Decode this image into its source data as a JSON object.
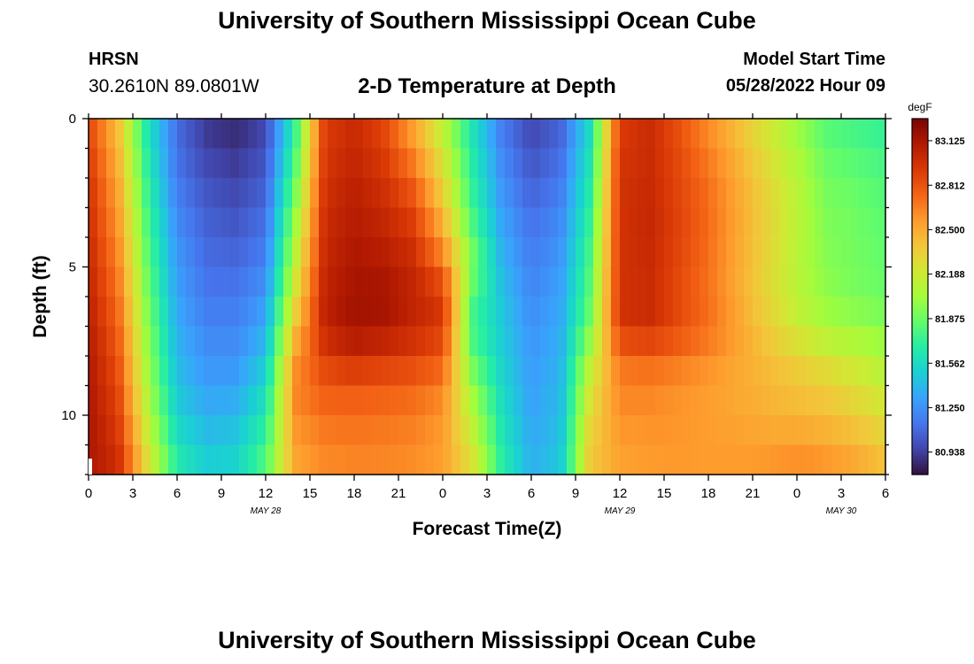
{
  "header": {
    "title": "University of Southern Mississippi Ocean Cube",
    "station": "HRSN",
    "coords": "30.2610N  89.0801W",
    "subtitle": "2-D Temperature at Depth",
    "model_label": "Model Start Time",
    "model_time": "05/28/2022 Hour 09"
  },
  "footer": {
    "title": "University of Southern Mississippi Ocean Cube"
  },
  "chart_data": {
    "type": "heatmap",
    "title": "2-D Temperature at Depth",
    "xlabel": "Forecast Time(Z)",
    "ylabel": "Depth (ft)",
    "x_ticks": [
      "0",
      "3",
      "6",
      "9",
      "12",
      "15",
      "18",
      "21",
      "0",
      "3",
      "6",
      "9",
      "12",
      "15",
      "18",
      "21",
      "0",
      "3",
      "6"
    ],
    "date_labels": [
      {
        "label": "MAY 28",
        "tick_index": 12
      },
      {
        "label": "MAY 29",
        "tick_index": 36
      },
      {
        "label": "MAY 30",
        "tick_index": 51
      }
    ],
    "y_ticks": [
      "0",
      "5",
      "10"
    ],
    "ylim": [
      0,
      12
    ],
    "x_range_hours": [
      0,
      54
    ],
    "colorbar": {
      "units": "degF",
      "labels": [
        "83.125",
        "82.812",
        "82.500",
        "82.188",
        "81.875",
        "81.562",
        "81.250",
        "80.938"
      ],
      "min": 80.78,
      "max": 83.28,
      "colors": [
        "#30123b",
        "#4145ab",
        "#4675ed",
        "#39a2fc",
        "#1bcfd4",
        "#24eca6",
        "#61fc6c",
        "#a4fc3b",
        "#d1e834",
        "#f3c63a",
        "#fe9b2d",
        "#f36315",
        "#d93806",
        "#b11901",
        "#7a0402"
      ]
    },
    "depth_rows": [
      "0",
      "1",
      "2",
      "3",
      "4",
      "5",
      "6",
      "7",
      "8",
      "9",
      "10",
      "11",
      "12"
    ],
    "hours": [
      0,
      2,
      4,
      6,
      8,
      10,
      12,
      14,
      16,
      18,
      20,
      22,
      24,
      26,
      28,
      30,
      32,
      34,
      36,
      38,
      40,
      42,
      44,
      46,
      48,
      50,
      52,
      54
    ],
    "temperature_degF": [
      [
        82.85,
        82.4,
        81.6,
        81.1,
        80.9,
        80.85,
        80.95,
        81.7,
        82.9,
        83.0,
        82.85,
        82.5,
        82.1,
        81.6,
        81.15,
        80.95,
        81.05,
        81.55,
        82.9,
        83.0,
        82.8,
        82.6,
        82.4,
        82.2,
        82.0,
        81.8,
        81.75,
        81.7
      ],
      [
        82.9,
        82.45,
        81.65,
        81.12,
        80.95,
        80.9,
        81.0,
        81.75,
        82.92,
        83.02,
        82.9,
        82.6,
        82.2,
        81.65,
        81.2,
        81.0,
        81.1,
        81.6,
        82.92,
        83.0,
        82.85,
        82.65,
        82.45,
        82.25,
        82.05,
        81.85,
        81.8,
        81.75
      ],
      [
        82.95,
        82.5,
        81.7,
        81.15,
        81.0,
        80.95,
        81.05,
        81.85,
        82.95,
        83.05,
        82.95,
        82.75,
        82.3,
        81.7,
        81.25,
        81.05,
        81.15,
        81.65,
        82.95,
        83.0,
        82.85,
        82.7,
        82.5,
        82.3,
        82.1,
        81.9,
        81.85,
        81.8
      ],
      [
        82.98,
        82.55,
        81.75,
        81.2,
        81.05,
        81.0,
        81.1,
        81.95,
        82.98,
        83.08,
        83.0,
        82.85,
        82.4,
        81.75,
        81.3,
        81.1,
        81.2,
        81.7,
        82.95,
        83.02,
        82.88,
        82.72,
        82.52,
        82.32,
        82.12,
        81.92,
        81.88,
        81.82
      ],
      [
        83.0,
        82.6,
        81.8,
        81.25,
        81.08,
        81.05,
        81.15,
        82.05,
        83.0,
        83.1,
        83.05,
        82.95,
        82.55,
        81.85,
        81.35,
        81.15,
        81.25,
        81.75,
        82.95,
        83.02,
        82.88,
        82.72,
        82.52,
        82.32,
        82.12,
        81.94,
        81.9,
        81.84
      ],
      [
        83.02,
        82.65,
        81.85,
        81.28,
        81.12,
        81.1,
        81.2,
        82.15,
        83.02,
        83.12,
        83.1,
        83.0,
        82.7,
        81.95,
        81.4,
        81.18,
        81.28,
        81.8,
        82.95,
        83.0,
        82.85,
        82.7,
        82.5,
        82.3,
        82.1,
        81.95,
        81.9,
        81.85
      ],
      [
        83.05,
        82.7,
        81.9,
        81.32,
        81.15,
        81.15,
        81.28,
        82.25,
        83.05,
        83.15,
        83.15,
        83.05,
        82.95,
        81.8,
        81.45,
        81.22,
        81.32,
        81.85,
        82.95,
        83.0,
        82.85,
        82.7,
        82.5,
        82.3,
        82.12,
        81.98,
        81.92,
        81.88
      ],
      [
        83.08,
        82.75,
        81.95,
        81.36,
        81.2,
        81.2,
        81.35,
        82.4,
        83.05,
        83.15,
        83.12,
        83.02,
        82.9,
        81.75,
        81.48,
        81.25,
        81.35,
        81.9,
        82.95,
        83.0,
        82.85,
        82.72,
        82.55,
        82.35,
        82.18,
        82.05,
        82.0,
        81.95
      ],
      [
        83.1,
        82.8,
        82.0,
        81.4,
        81.25,
        81.25,
        81.45,
        82.55,
        82.9,
        83.0,
        82.95,
        82.9,
        82.8,
        81.85,
        81.5,
        81.28,
        81.38,
        82.1,
        82.7,
        82.75,
        82.7,
        82.62,
        82.52,
        82.42,
        82.32,
        82.22,
        82.15,
        82.05
      ],
      [
        83.12,
        82.85,
        82.05,
        81.45,
        81.3,
        81.32,
        81.55,
        82.65,
        82.8,
        82.8,
        82.78,
        82.75,
        82.65,
        82.0,
        81.55,
        81.3,
        81.4,
        82.2,
        82.65,
        82.65,
        82.6,
        82.55,
        82.5,
        82.45,
        82.4,
        82.35,
        82.25,
        82.15
      ],
      [
        83.12,
        82.9,
        82.12,
        81.52,
        81.38,
        81.4,
        81.65,
        82.6,
        82.7,
        82.72,
        82.7,
        82.68,
        82.58,
        82.1,
        81.6,
        81.32,
        81.42,
        82.3,
        82.6,
        82.6,
        82.58,
        82.55,
        82.52,
        82.48,
        82.45,
        82.42,
        82.35,
        82.25
      ],
      [
        83.12,
        82.95,
        82.2,
        81.6,
        81.45,
        81.48,
        81.75,
        82.55,
        82.65,
        82.66,
        82.65,
        82.62,
        82.55,
        82.2,
        81.65,
        81.35,
        81.45,
        82.35,
        82.55,
        82.58,
        82.58,
        82.56,
        82.55,
        82.54,
        82.55,
        82.52,
        82.45,
        82.35
      ],
      [
        83.12,
        83.0,
        82.3,
        81.7,
        81.52,
        81.55,
        81.85,
        82.5,
        82.6,
        82.62,
        82.62,
        82.6,
        82.55,
        82.3,
        81.7,
        81.38,
        81.48,
        82.4,
        82.52,
        82.55,
        82.56,
        82.56,
        82.57,
        82.6,
        82.65,
        82.62,
        82.55,
        82.45
      ]
    ]
  }
}
